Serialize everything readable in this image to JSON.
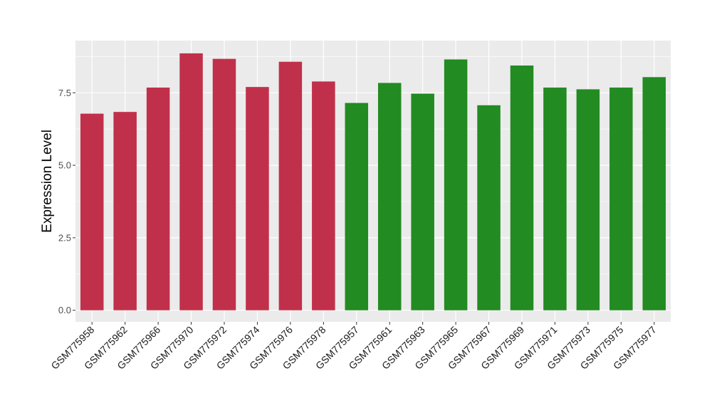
{
  "chart_data": {
    "type": "bar",
    "title": "",
    "xlabel": "",
    "ylabel": "Expression Level",
    "categories": [
      "GSM775958",
      "GSM775962",
      "GSM775966",
      "GSM775970",
      "GSM775972",
      "GSM775974",
      "GSM775976",
      "GSM775978",
      "GSM775957",
      "GSM775961",
      "GSM775963",
      "GSM775965",
      "GSM775967",
      "GSM775969",
      "GSM775971",
      "GSM775973",
      "GSM775975",
      "GSM775977"
    ],
    "values": [
      6.78,
      6.84,
      7.68,
      8.86,
      8.67,
      7.7,
      8.57,
      7.89,
      7.15,
      7.84,
      7.47,
      8.65,
      7.07,
      8.44,
      7.68,
      7.62,
      7.68,
      8.04
    ],
    "bar_colors": [
      "#c1304a",
      "#c1304a",
      "#c1304a",
      "#c1304a",
      "#c1304a",
      "#c1304a",
      "#c1304a",
      "#c1304a",
      "#228b22",
      "#228b22",
      "#228b22",
      "#228b22",
      "#228b22",
      "#228b22",
      "#228b22",
      "#228b22",
      "#228b22",
      "#228b22"
    ],
    "ylim": [
      -0.4,
      9.3
    ],
    "yticks": [
      0.0,
      2.5,
      5.0,
      7.5
    ],
    "ytick_labels": [
      "0.0",
      "2.5",
      "5.0",
      "7.5"
    ],
    "grid": true,
    "legend": "none",
    "panel_background": "#ebebeb",
    "gridline_color": "#ffffff"
  }
}
